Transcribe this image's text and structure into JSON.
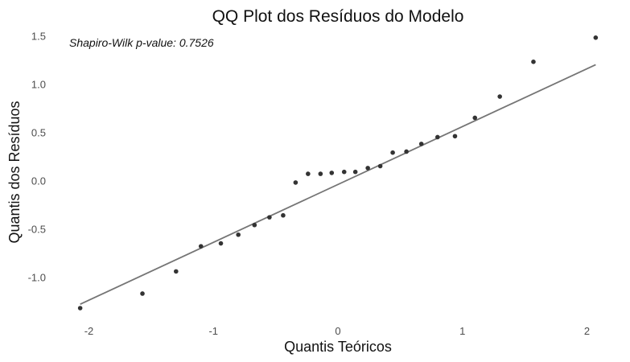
{
  "chart_data": {
    "type": "scatter",
    "title": "QQ Plot dos Resíduos do Modelo",
    "xlabel": "Quantis Teóricos",
    "ylabel": "Quantis dos Resíduos",
    "xlim": [
      -2.1,
      2.1
    ],
    "ylim": [
      -1.42,
      1.62
    ],
    "x_ticks": [
      -2,
      -1,
      0,
      1,
      2
    ],
    "x_tick_labels": [
      "-2",
      "-1",
      "0",
      "1",
      "2"
    ],
    "y_ticks": [
      -1.0,
      -0.5,
      0.0,
      0.5,
      1.0,
      1.5
    ],
    "y_tick_labels": [
      "-1.0",
      "-0.5",
      "0.0",
      "0.5",
      "1.0",
      "1.5"
    ],
    "grid": false,
    "annotation": "Shapiro-Wilk p-value: 0.7526",
    "point_color": "#333333",
    "line_color": "#757575",
    "points": [
      {
        "x": -2.07,
        "y": -1.32
      },
      {
        "x": -1.57,
        "y": -1.17
      },
      {
        "x": -1.3,
        "y": -0.94
      },
      {
        "x": -1.1,
        "y": -0.68
      },
      {
        "x": -0.94,
        "y": -0.65
      },
      {
        "x": -0.8,
        "y": -0.56
      },
      {
        "x": -0.67,
        "y": -0.46
      },
      {
        "x": -0.55,
        "y": -0.38
      },
      {
        "x": -0.44,
        "y": -0.36
      },
      {
        "x": -0.34,
        "y": -0.02
      },
      {
        "x": -0.24,
        "y": 0.07
      },
      {
        "x": -0.14,
        "y": 0.07
      },
      {
        "x": -0.05,
        "y": 0.08
      },
      {
        "x": 0.05,
        "y": 0.09
      },
      {
        "x": 0.14,
        "y": 0.09
      },
      {
        "x": 0.24,
        "y": 0.13
      },
      {
        "x": 0.34,
        "y": 0.15
      },
      {
        "x": 0.44,
        "y": 0.29
      },
      {
        "x": 0.55,
        "y": 0.3
      },
      {
        "x": 0.67,
        "y": 0.38
      },
      {
        "x": 0.8,
        "y": 0.45
      },
      {
        "x": 0.94,
        "y": 0.46
      },
      {
        "x": 1.1,
        "y": 0.65
      },
      {
        "x": 1.3,
        "y": 0.87
      },
      {
        "x": 1.57,
        "y": 1.23
      },
      {
        "x": 2.07,
        "y": 1.48
      }
    ],
    "reference_line": {
      "x": [
        -2.07,
        2.07
      ],
      "y": [
        -1.28,
        1.2
      ]
    }
  }
}
